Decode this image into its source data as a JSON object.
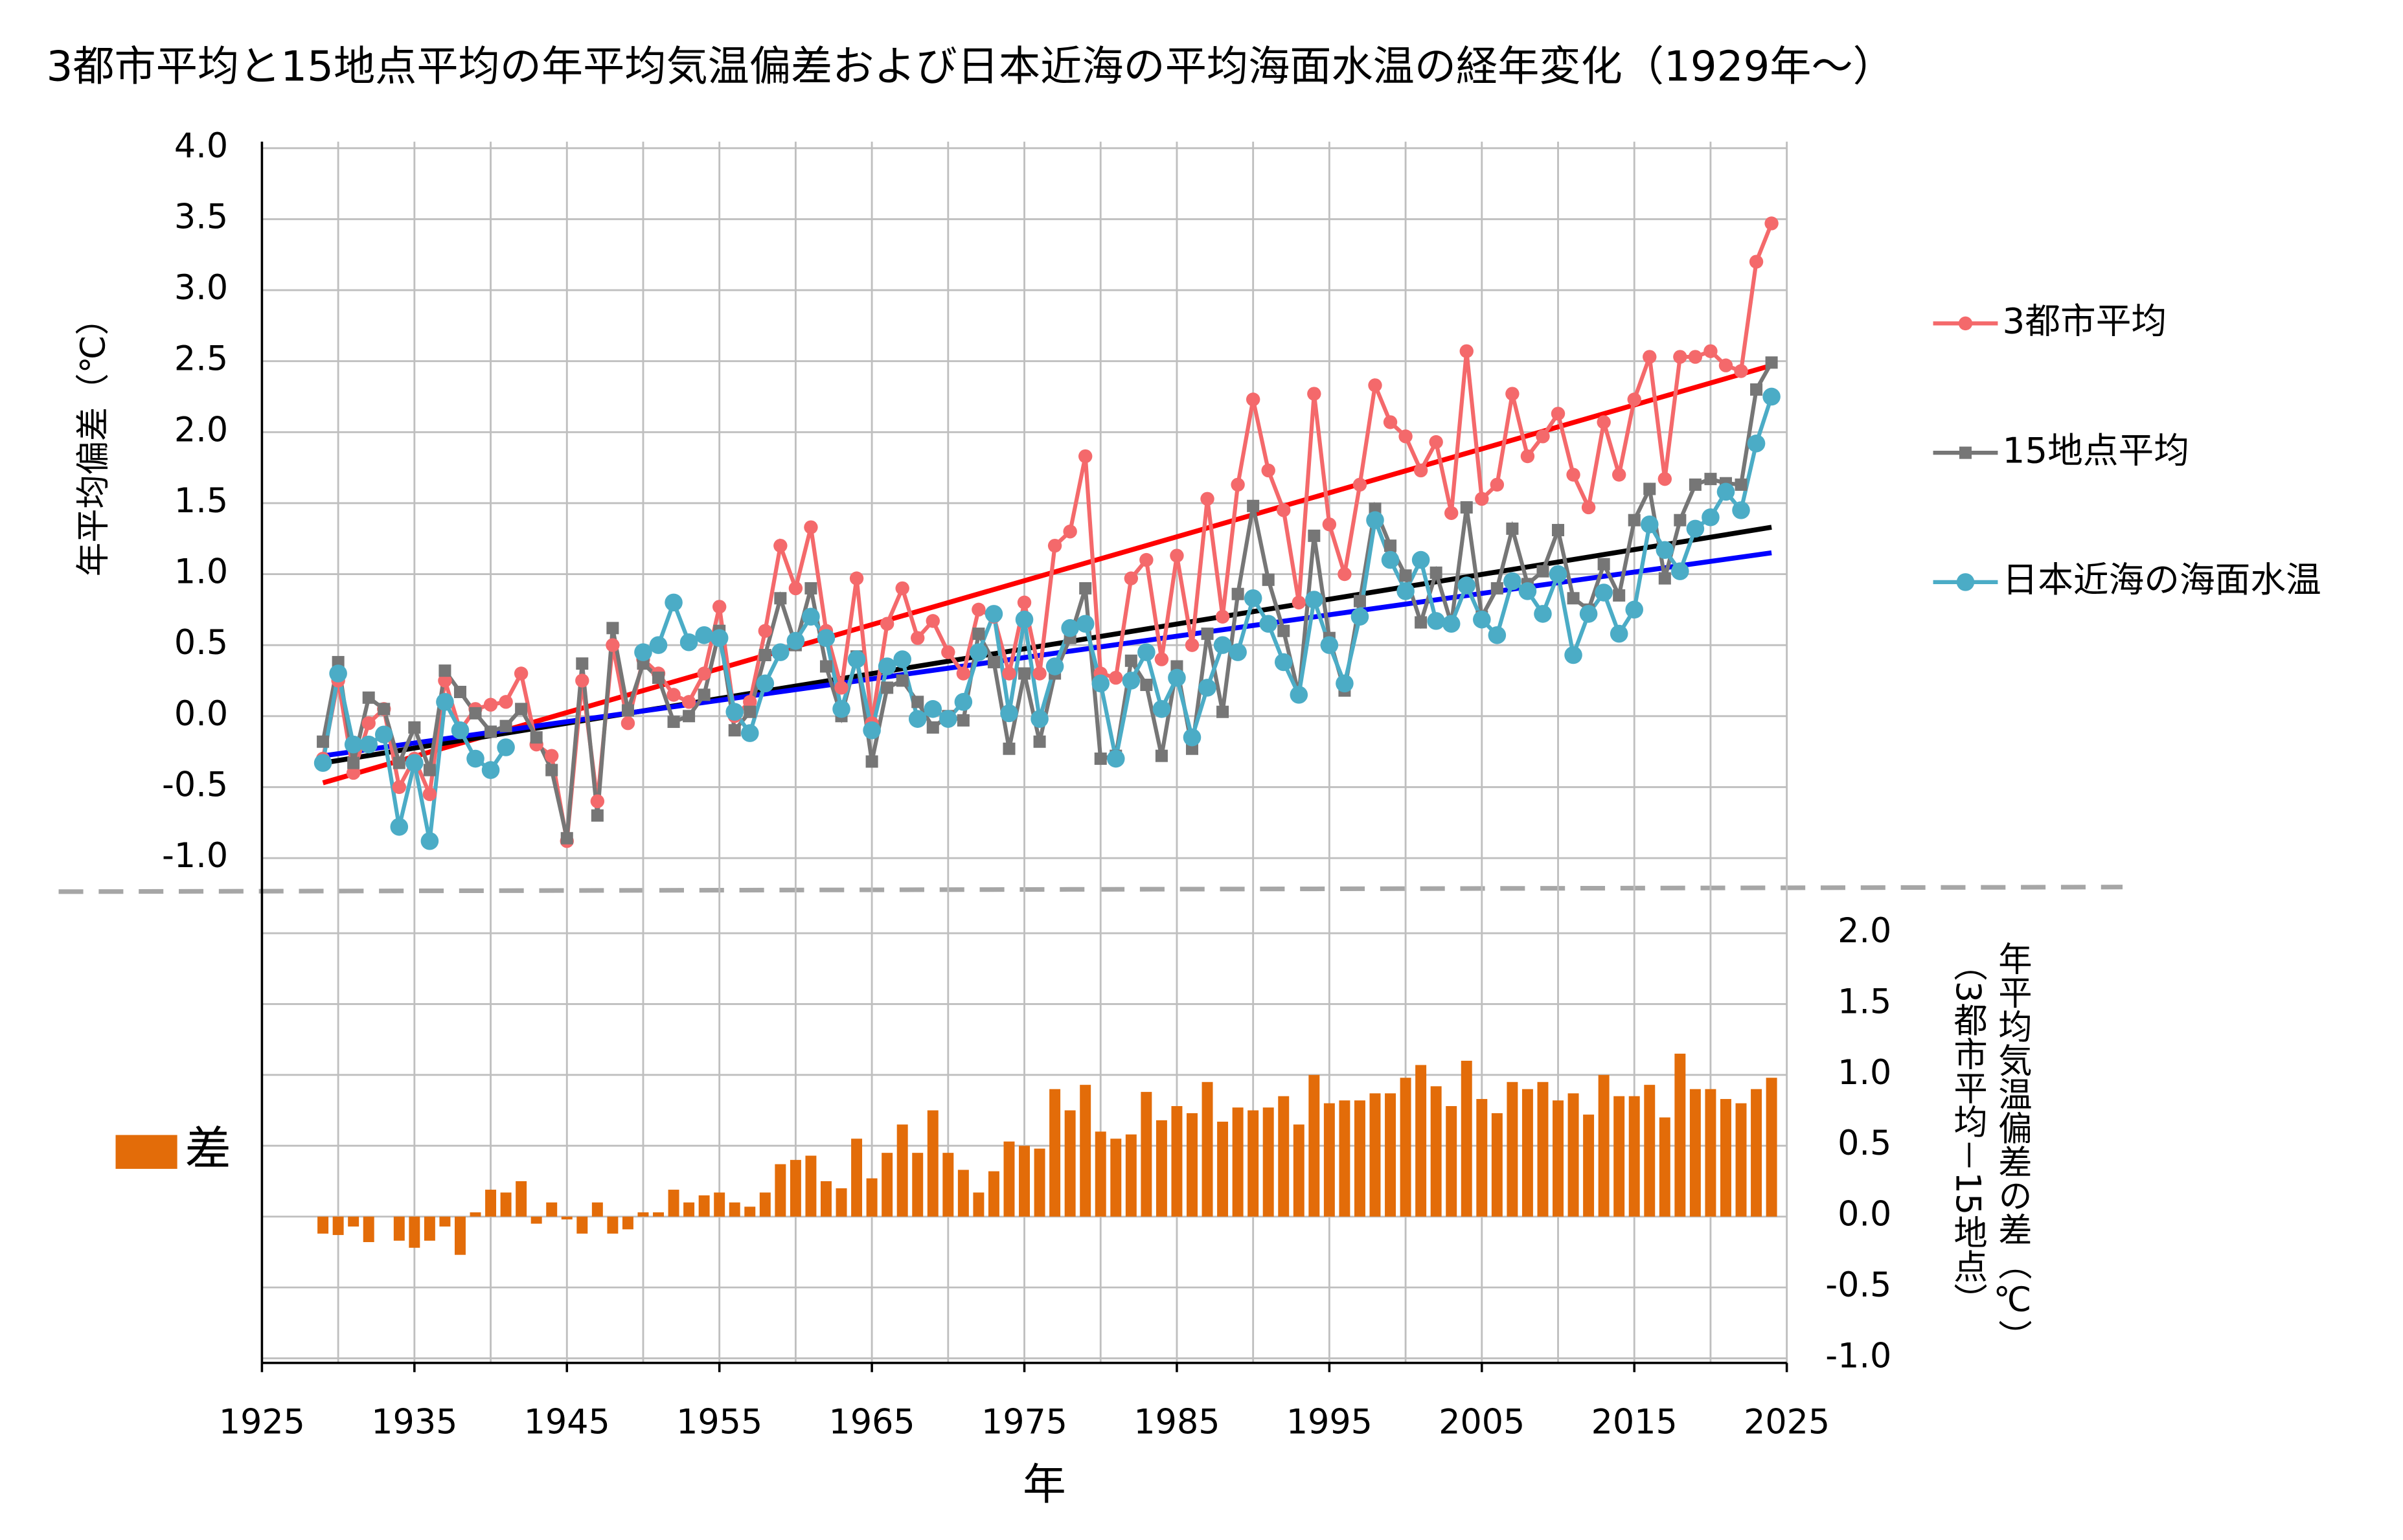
{
  "chart_data": [
    {
      "type": "line",
      "title": "3都市平均と15地点平均の年平均気温偏差および日本近海の平均海面水温の経年変化（1929年～）",
      "ylabel": "年平均偏差（℃）",
      "xlim": [
        1925,
        2025
      ],
      "x_grid": [
        1925,
        1930,
        1935,
        1940,
        1945,
        1950,
        1955,
        1960,
        1965,
        1970,
        1975,
        1980,
        1985,
        1990,
        1995,
        2000,
        2005,
        2010,
        2015,
        2020,
        2025
      ],
      "ylim": [
        -1,
        4
      ],
      "yticks": [
        {
          "value": 4,
          "label": "4.0"
        },
        {
          "value": 3.5,
          "label": "3.5"
        },
        {
          "value": 3,
          "label": "3.0"
        },
        {
          "value": 2.5,
          "label": "2.5"
        },
        {
          "value": 2,
          "label": "2.0"
        },
        {
          "value": 1.5,
          "label": "1.5"
        },
        {
          "value": 1,
          "label": "1.0"
        },
        {
          "value": 0.5,
          "label": "0.5"
        },
        {
          "value": 0,
          "label": "0.0"
        },
        {
          "value": -0.5,
          "label": "-0.5"
        },
        {
          "value": -1,
          "label": "-1.0"
        }
      ],
      "grid": true,
      "x": [
        1929,
        1930,
        1931,
        1932,
        1933,
        1934,
        1935,
        1936,
        1937,
        1938,
        1939,
        1940,
        1941,
        1942,
        1943,
        1944,
        1945,
        1946,
        1947,
        1948,
        1949,
        1950,
        1951,
        1952,
        1953,
        1954,
        1955,
        1956,
        1957,
        1958,
        1959,
        1960,
        1961,
        1962,
        1963,
        1964,
        1965,
        1966,
        1967,
        1968,
        1969,
        1970,
        1971,
        1972,
        1973,
        1974,
        1975,
        1976,
        1977,
        1978,
        1979,
        1980,
        1981,
        1982,
        1983,
        1984,
        1985,
        1986,
        1987,
        1988,
        1989,
        1990,
        1991,
        1992,
        1993,
        1994,
        1995,
        1996,
        1997,
        1998,
        1999,
        2000,
        2001,
        2002,
        2003,
        2004,
        2005,
        2006,
        2007,
        2008,
        2009,
        2010,
        2011,
        2012,
        2013,
        2014,
        2015,
        2016,
        2017,
        2018,
        2019,
        2020,
        2021,
        2022,
        2023,
        2024
      ],
      "series": [
        {
          "name": "3都市平均",
          "color": "#f4696b",
          "marker": "circle",
          "values": [
            -0.3,
            0.25,
            -0.4,
            -0.05,
            0.05,
            -0.5,
            -0.3,
            -0.55,
            0.25,
            -0.1,
            0.05,
            0.08,
            0.1,
            0.3,
            -0.2,
            -0.28,
            -0.88,
            0.25,
            -0.6,
            0.5,
            -0.05,
            0.4,
            0.3,
            0.15,
            0.1,
            0.3,
            0.77,
            0.0,
            0.1,
            0.6,
            1.2,
            0.9,
            1.33,
            0.6,
            0.2,
            0.97,
            -0.05,
            0.65,
            0.9,
            0.55,
            0.67,
            0.45,
            0.3,
            0.75,
            0.7,
            0.3,
            0.8,
            0.3,
            1.2,
            1.3,
            1.83,
            0.3,
            0.27,
            0.97,
            1.1,
            0.4,
            1.13,
            0.5,
            1.53,
            0.7,
            1.63,
            2.23,
            1.73,
            1.45,
            0.8,
            2.27,
            1.35,
            1.0,
            1.63,
            2.33,
            2.07,
            1.97,
            1.73,
            1.93,
            1.43,
            2.57,
            1.53,
            1.63,
            2.27,
            1.83,
            1.97,
            2.13,
            1.7,
            1.47,
            2.07,
            1.7,
            2.23,
            2.53,
            1.67,
            2.53,
            2.53,
            2.57,
            2.47,
            2.43,
            3.2,
            3.47
          ]
        },
        {
          "name": "15地点平均",
          "color": "#767676",
          "marker": "square",
          "values": [
            -0.18,
            0.38,
            -0.33,
            0.13,
            0.05,
            -0.33,
            -0.08,
            -0.38,
            0.32,
            0.17,
            0.02,
            -0.11,
            -0.07,
            0.05,
            -0.15,
            -0.38,
            -0.86,
            0.37,
            -0.7,
            0.62,
            0.04,
            0.37,
            0.27,
            -0.04,
            0.0,
            0.15,
            0.6,
            -0.1,
            0.03,
            0.43,
            0.83,
            0.5,
            0.9,
            0.35,
            0.0,
            0.42,
            -0.32,
            0.2,
            0.25,
            0.1,
            -0.08,
            0.0,
            -0.03,
            0.58,
            0.38,
            -0.23,
            0.3,
            -0.18,
            0.3,
            0.55,
            0.9,
            -0.3,
            -0.28,
            0.39,
            0.22,
            -0.28,
            0.35,
            -0.23,
            0.58,
            0.03,
            0.86,
            1.48,
            0.96,
            0.6,
            0.15,
            1.27,
            0.55,
            0.18,
            0.81,
            1.46,
            1.2,
            0.99,
            0.66,
            1.01,
            0.65,
            1.47,
            0.7,
            0.9,
            1.32,
            0.93,
            1.02,
            1.31,
            0.83,
            0.75,
            1.07,
            0.85,
            1.38,
            1.6,
            0.97,
            1.38,
            1.63,
            1.67,
            1.64,
            1.63,
            2.3,
            2.49
          ]
        },
        {
          "name": "日本近海の海面水温",
          "color": "#4bacc6",
          "marker": "circle",
          "values": [
            -0.33,
            0.3,
            -0.2,
            -0.2,
            -0.13,
            -0.78,
            -0.33,
            -0.88,
            0.1,
            -0.1,
            -0.3,
            -0.38,
            -0.22,
            null,
            null,
            null,
            null,
            null,
            null,
            null,
            null,
            0.45,
            0.5,
            0.8,
            0.52,
            0.57,
            0.55,
            0.03,
            -0.12,
            0.23,
            0.45,
            0.53,
            0.7,
            0.55,
            0.05,
            0.4,
            -0.1,
            0.35,
            0.4,
            -0.02,
            0.05,
            -0.02,
            0.1,
            0.45,
            0.72,
            0.02,
            0.68,
            -0.02,
            0.35,
            0.62,
            0.65,
            0.23,
            -0.3,
            0.25,
            0.45,
            0.05,
            0.27,
            -0.15,
            0.2,
            0.5,
            0.45,
            0.83,
            0.65,
            0.38,
            0.15,
            0.82,
            0.5,
            0.23,
            0.7,
            1.38,
            1.1,
            0.88,
            1.1,
            0.67,
            0.65,
            0.92,
            0.68,
            0.57,
            0.95,
            0.88,
            0.72,
            1.0,
            0.43,
            0.72,
            0.87,
            0.58,
            0.75,
            1.35,
            1.17,
            1.02,
            1.32,
            1.4,
            1.58,
            1.45,
            1.92,
            2.25
          ]
        }
      ],
      "trend_lines": [
        {
          "color": "#ff0000",
          "x": [
            1929,
            2024
          ],
          "values": [
            -0.47,
            2.47
          ]
        },
        {
          "color": "#000000",
          "x": [
            1929,
            2024
          ],
          "values": [
            -0.33,
            1.33
          ]
        },
        {
          "color": "#0000ff",
          "x": [
            1929,
            2024
          ],
          "values": [
            -0.28,
            1.15
          ]
        }
      ]
    },
    {
      "type": "bar",
      "name": "差",
      "color": "#e36c09",
      "xlabel": "年",
      "ylabel": "年平均気温偏差の差（℃）",
      "ylabel2": "（3都市平均－15地点）",
      "xlim": [
        1925,
        2025
      ],
      "xticks": [
        1925,
        1935,
        1945,
        1955,
        1965,
        1975,
        1985,
        1995,
        2005,
        2015,
        2025
      ],
      "ylim": [
        -1,
        2
      ],
      "yticks": [
        {
          "value": 2,
          "label": "2.0"
        },
        {
          "value": 1.5,
          "label": "1.5"
        },
        {
          "value": 1,
          "label": "1.0"
        },
        {
          "value": 0.5,
          "label": "0.5"
        },
        {
          "value": 0,
          "label": "0.0"
        },
        {
          "value": -0.5,
          "label": "-0.5"
        },
        {
          "value": -1,
          "label": "-1.0"
        }
      ],
      "grid": true,
      "x": [
        1929,
        1930,
        1931,
        1932,
        1933,
        1934,
        1935,
        1936,
        1937,
        1938,
        1939,
        1940,
        1941,
        1942,
        1943,
        1944,
        1945,
        1946,
        1947,
        1948,
        1949,
        1950,
        1951,
        1952,
        1953,
        1954,
        1955,
        1956,
        1957,
        1958,
        1959,
        1960,
        1961,
        1962,
        1963,
        1964,
        1965,
        1966,
        1967,
        1968,
        1969,
        1970,
        1971,
        1972,
        1973,
        1974,
        1975,
        1976,
        1977,
        1978,
        1979,
        1980,
        1981,
        1982,
        1983,
        1984,
        1985,
        1986,
        1987,
        1988,
        1989,
        1990,
        1991,
        1992,
        1993,
        1994,
        1995,
        1996,
        1997,
        1998,
        1999,
        2000,
        2001,
        2002,
        2003,
        2004,
        2005,
        2006,
        2007,
        2008,
        2009,
        2010,
        2011,
        2012,
        2013,
        2014,
        2015,
        2016,
        2017,
        2018,
        2019,
        2020,
        2021,
        2022,
        2023,
        2024
      ],
      "values": [
        -0.12,
        -0.13,
        -0.07,
        -0.18,
        0.0,
        -0.17,
        -0.22,
        -0.17,
        -0.07,
        -0.27,
        0.03,
        0.19,
        0.17,
        0.25,
        -0.05,
        0.1,
        -0.02,
        -0.12,
        0.1,
        -0.12,
        -0.09,
        0.03,
        0.03,
        0.19,
        0.1,
        0.15,
        0.17,
        0.1,
        0.07,
        0.17,
        0.37,
        0.4,
        0.43,
        0.25,
        0.2,
        0.55,
        0.27,
        0.45,
        0.65,
        0.45,
        0.75,
        0.45,
        0.33,
        0.17,
        0.32,
        0.53,
        0.5,
        0.48,
        0.9,
        0.75,
        0.93,
        0.6,
        0.55,
        0.58,
        0.88,
        0.68,
        0.78,
        0.73,
        0.95,
        0.67,
        0.77,
        0.75,
        0.77,
        0.85,
        0.65,
        1.0,
        0.8,
        0.82,
        0.82,
        0.87,
        0.87,
        0.98,
        1.07,
        0.92,
        0.78,
        1.1,
        0.83,
        0.73,
        0.95,
        0.9,
        0.95,
        0.82,
        0.87,
        0.72,
        1.0,
        0.85,
        0.85,
        0.93,
        0.7,
        1.15,
        0.9,
        0.9,
        0.83,
        0.8,
        0.9,
        0.98
      ]
    }
  ]
}
